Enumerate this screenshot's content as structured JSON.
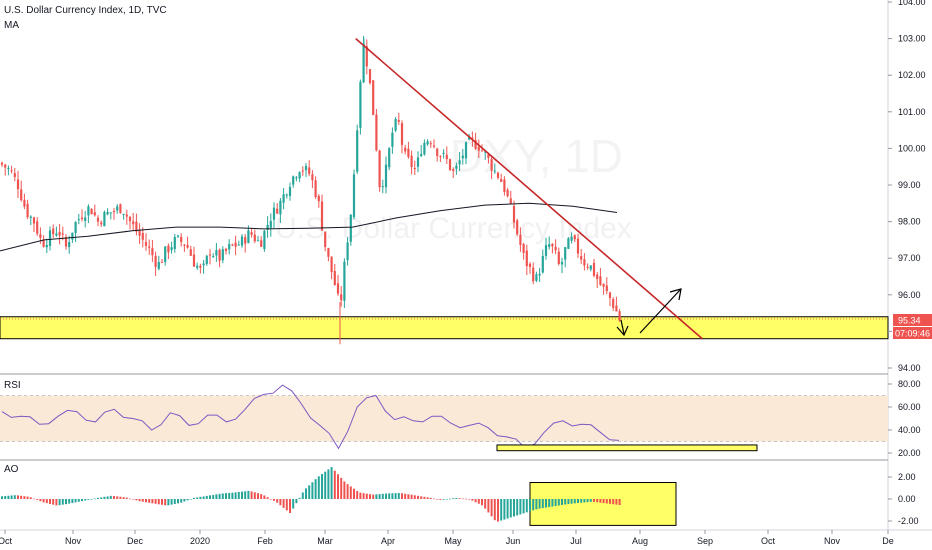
{
  "header": {
    "symbol_title": "U.S. Dollar Currency Index, 1D, TVC",
    "indicator": "MA",
    "watermark": "U.S. Dollar Currency Index",
    "watermark_symbol": "DXY, 1D"
  },
  "price_badges": {
    "last_price": "95.34",
    "countdown": "07:09:46"
  },
  "colors": {
    "up": "#26a69a",
    "down": "#ef5350",
    "trendline": "#c62828",
    "support_zone": "#ffff66",
    "ma": "#131722",
    "rsi_band": "#fbe9d7",
    "rsi_line": "#7e57c2",
    "badge": "#ef5350"
  },
  "x_axis": {
    "labels": [
      "Oct",
      "Nov",
      "Dec",
      "2020",
      "Feb",
      "Mar",
      "Apr",
      "May",
      "Jun",
      "Jul",
      "Aug",
      "Sep",
      "Oct",
      "Nov",
      "De"
    ]
  },
  "panes": {
    "rsi": {
      "title": "RSI"
    },
    "ao": {
      "title": "AO"
    }
  },
  "chart_data": [
    {
      "pane": "price",
      "type": "candlestick",
      "y_ticks": [
        "104.00",
        "103.00",
        "102.00",
        "101.00",
        "100.00",
        "99.00",
        "98.00",
        "97.00",
        "96.00",
        "95.00",
        "94.00"
      ],
      "ylim": [
        93.7,
        104.1
      ],
      "ma_line": [
        97.2,
        97.5,
        97.6,
        97.75,
        97.85,
        97.85,
        97.8,
        97.82,
        97.85,
        98.1,
        98.3,
        98.45,
        98.5,
        98.42,
        98.25
      ],
      "trendline": {
        "from": {
          "date": "2020-03-19",
          "price": 103.0
        },
        "to": {
          "date": "2020-09-03",
          "price": 94.8
        }
      },
      "support_zone": [
        94.8,
        95.4
      ],
      "annotations": [
        "down-arrow",
        "up-arrow"
      ],
      "last_price": 95.34
    },
    {
      "pane": "rsi",
      "type": "line",
      "y_ticks": [
        "80.00",
        "60.00",
        "40.00",
        "20.00"
      ],
      "ylim": [
        16,
        84
      ],
      "band": [
        30,
        70
      ],
      "values": [
        56,
        52,
        45,
        52,
        56,
        47,
        58,
        50,
        40,
        55,
        44,
        53,
        47,
        58,
        71,
        79,
        63,
        44,
        24,
        60,
        70,
        49,
        48,
        52,
        46,
        44,
        42,
        34,
        24,
        38,
        48,
        45,
        38,
        31
      ],
      "highlight_zone": [
        22,
        27
      ]
    },
    {
      "pane": "ao",
      "type": "histogram",
      "y_ticks": [
        "2.00",
        "0.00",
        "-2.00"
      ],
      "ylim": [
        -2.5,
        3.2
      ],
      "values": [
        0.25,
        0.35,
        0.2,
        -0.3,
        -0.6,
        -0.4,
        -0.15,
        0.1,
        0.3,
        0.15,
        -0.2,
        -0.4,
        -0.6,
        -0.35,
        0.1,
        0.3,
        0.5,
        0.6,
        0.75,
        0.4,
        -0.3,
        -1.3,
        0.8,
        2.0,
        2.9,
        1.5,
        0.6,
        0.4,
        0.5,
        0.55,
        0.35,
        0.15,
        -0.1,
        0.1,
        0.0,
        -0.6,
        -2.1,
        -1.7,
        -1.3,
        -0.9,
        -0.7,
        -0.5,
        -0.35,
        -0.25,
        -0.4,
        -0.55
      ],
      "highlight_zone": [
        -2.4,
        1.5
      ]
    }
  ]
}
